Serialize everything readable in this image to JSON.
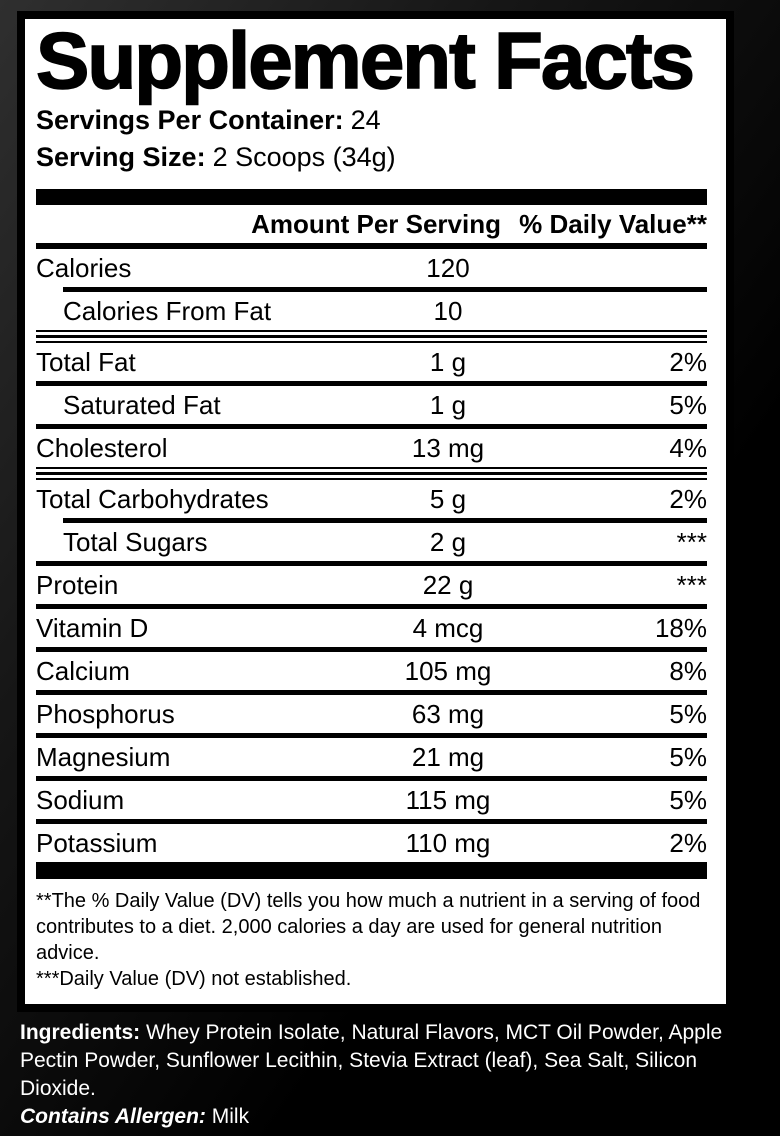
{
  "label": {
    "title": "Supplement Facts",
    "servings_per_container": {
      "label": "Servings Per Container:",
      "value": "24"
    },
    "serving_size": {
      "label": "Serving Size:",
      "value": "2 Scoops (34g)"
    },
    "header": {
      "amount": "Amount Per Serving",
      "daily_value": "% Daily Value**"
    },
    "rows": [
      {
        "name": "Calories",
        "amount": "120",
        "dv": "",
        "indent": false,
        "separator": "thick-indent"
      },
      {
        "name": "Calories From Fat",
        "amount": "10",
        "dv": "",
        "indent": true,
        "separator": "group"
      },
      {
        "name": "Total Fat",
        "amount": "1 g",
        "dv": "2%",
        "indent": false,
        "separator": "thick"
      },
      {
        "name": "Saturated Fat",
        "amount": "1 g",
        "dv": "5%",
        "indent": true,
        "separator": "thick"
      },
      {
        "name": "Cholesterol",
        "amount": "13 mg",
        "dv": "4%",
        "indent": false,
        "separator": "group"
      },
      {
        "name": "Total Carbohydrates",
        "amount": "5 g",
        "dv": "2%",
        "indent": false,
        "separator": "thick-indent"
      },
      {
        "name": "Total Sugars",
        "amount": "2 g",
        "dv": "***",
        "indent": true,
        "separator": "thick"
      },
      {
        "name": "Protein",
        "amount": "22 g",
        "dv": "***",
        "indent": false,
        "separator": "thick"
      },
      {
        "name": "Vitamin D",
        "amount": "4 mcg",
        "dv": "18%",
        "indent": false,
        "separator": "thick"
      },
      {
        "name": "Calcium",
        "amount": "105 mg",
        "dv": "8%",
        "indent": false,
        "separator": "thick"
      },
      {
        "name": "Phosphorus",
        "amount": "63 mg",
        "dv": "5%",
        "indent": false,
        "separator": "thick"
      },
      {
        "name": "Magnesium",
        "amount": "21 mg",
        "dv": "5%",
        "indent": false,
        "separator": "thick"
      },
      {
        "name": "Sodium",
        "amount": "115 mg",
        "dv": "5%",
        "indent": false,
        "separator": "thick"
      },
      {
        "name": "Potassium",
        "amount": "110 mg",
        "dv": "2%",
        "indent": false,
        "separator": "none"
      }
    ],
    "footnotes": [
      "**The % Daily Value (DV) tells you how much a nutrient in a serving of food contributes to a diet. 2,000 calories a day are used for general nutrition advice.",
      "***Daily Value (DV) not established."
    ]
  },
  "ingredients": {
    "label": "Ingredients:",
    "text": " Whey Protein Isolate, Natural Flavors, MCT Oil Powder, Apple Pectin Powder, Sunflower Lecithin,  Stevia Extract (leaf), Sea Salt, Silicon Dioxide.",
    "allergen_label": "Contains Allergen:",
    "allergen_value": " Milk"
  },
  "colors": {
    "label_bg": "#ffffff",
    "label_text": "#000000",
    "page_bg": "#000000",
    "page_bg_highlight": "#2f2f2f",
    "ingredients_text": "#ffffff"
  }
}
